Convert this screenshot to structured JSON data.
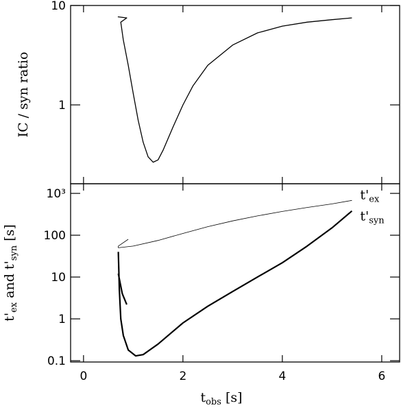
{
  "chart_data": [
    {
      "type": "line",
      "y_label": "IC / syn ratio",
      "xlim": [
        -0.26,
        6.36
      ],
      "xticks": [
        0,
        2,
        4,
        6
      ],
      "ylim": [
        0.161,
        10
      ],
      "yticks": [
        1,
        10
      ],
      "log_y": true,
      "series": [
        {
          "color": "#000000",
          "width": 1.3,
          "x": [
            0.69,
            0.87,
            0.75,
            0.8,
            0.9,
            1.0,
            1.1,
            1.2,
            1.3,
            1.4,
            1.5,
            1.6,
            1.8,
            2.0,
            2.2,
            2.5,
            3.0,
            3.5,
            4.0,
            4.5,
            5.0,
            5.4
          ],
          "values": [
            7.7,
            7.5,
            6.8,
            4.5,
            2.5,
            1.3,
            0.7,
            0.42,
            0.3,
            0.265,
            0.28,
            0.35,
            0.6,
            1.0,
            1.55,
            2.5,
            4.0,
            5.3,
            6.2,
            6.8,
            7.2,
            7.5
          ]
        }
      ]
    },
    {
      "type": "line",
      "y_label_parts": [
        "t'",
        "ex",
        " and t'",
        "syn",
        " [s]"
      ],
      "x_label_parts": [
        "t",
        "obs",
        " [s]"
      ],
      "xlim": [
        -0.26,
        6.36
      ],
      "xticks": [
        0,
        2,
        4,
        6
      ],
      "ylim": [
        0.093,
        1700
      ],
      "log_y": true,
      "yticks": [
        0.1,
        1,
        10,
        100,
        {
          "value": 1000,
          "label": "10³"
        }
      ],
      "series": [
        {
          "label_parts": [
            "t'",
            "ex"
          ],
          "color": "#000000",
          "width": 0.8,
          "x": [
            0.9,
            0.7,
            0.7,
            1.0,
            1.5,
            2.0,
            2.5,
            3.0,
            3.5,
            4.0,
            4.5,
            5.0,
            5.4
          ],
          "values": [
            80,
            55,
            50,
            55,
            75,
            110,
            160,
            220,
            290,
            370,
            460,
            560,
            680
          ]
        },
        {
          "label_parts": [
            "t'",
            "syn"
          ],
          "color": "#000000",
          "width": 2.2,
          "x": [
            0.7,
            0.72,
            0.75,
            0.8,
            0.9,
            1.05,
            1.2,
            1.5,
            2.0,
            2.5,
            3.0,
            3.5,
            4.0,
            4.5,
            5.0,
            5.4,
            null,
            0.7,
            0.78,
            0.87
          ],
          "values": [
            40,
            5,
            1,
            0.4,
            0.18,
            0.13,
            0.14,
            0.25,
            0.8,
            2,
            4.5,
            10,
            22,
            55,
            150,
            380,
            null,
            12,
            4,
            2.2
          ]
        }
      ]
    }
  ]
}
